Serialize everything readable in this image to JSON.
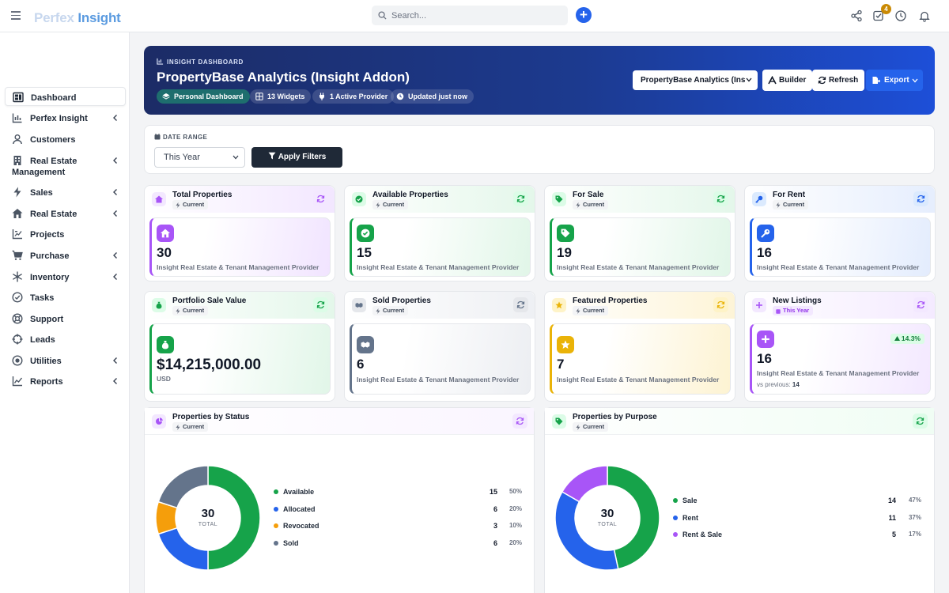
{
  "app": {
    "brand_part1": "Perfex",
    "brand_part2": "Insight",
    "search_placeholder": "Search...",
    "notification_count": "4"
  },
  "sidebar": {
    "items": [
      {
        "label": "Dashboard",
        "icon": "dashboard-icon",
        "active": true
      },
      {
        "label": "Perfex Insight",
        "icon": "chart-icon",
        "chevron": true
      },
      {
        "label": "Customers",
        "icon": "user-icon"
      },
      {
        "label": "Real Estate",
        "label2": "Management",
        "icon": "building-icon",
        "chevron": true
      },
      {
        "label": "Sales",
        "icon": "bolt-icon",
        "chevron": true
      },
      {
        "label": "Real Estate",
        "icon": "house-icon",
        "chevron": true
      },
      {
        "label": "Projects",
        "icon": "projects-icon"
      },
      {
        "label": "Purchase",
        "icon": "cart-icon",
        "chevron": true
      },
      {
        "label": "Inventory",
        "icon": "snowflake-icon",
        "chevron": true
      },
      {
        "label": "Tasks",
        "icon": "check-circle-icon"
      },
      {
        "label": "Support",
        "icon": "lifebuoy-icon"
      },
      {
        "label": "Leads",
        "icon": "crosshair-icon"
      },
      {
        "label": "Utilities",
        "icon": "dot-circle-icon",
        "chevron": true
      },
      {
        "label": "Reports",
        "icon": "line-chart-icon",
        "chevron": true
      }
    ]
  },
  "hero": {
    "kicker": "INSIGHT DASHBOARD",
    "title": "PropertyBase Analytics (Insight Addon)",
    "pills": [
      "Personal Dashboard",
      "13 Widgets",
      "1 Active Provider",
      "Updated just now"
    ],
    "selector_value": "PropertyBase Analytics (Ins",
    "builder_label": "Builder",
    "refresh_label": "Refresh",
    "export_label": "Export"
  },
  "filters": {
    "date_range_label": "DATE RANGE",
    "date_range_value": "This Year",
    "apply_label": "Apply Filters"
  },
  "cards": [
    {
      "title": "Total Properties",
      "badge": "Current",
      "value": "30",
      "sub": "Insight Real Estate & Tenant Management Provider"
    },
    {
      "title": "Available Properties",
      "badge": "Current",
      "value": "15",
      "sub": "Insight Real Estate & Tenant Management Provider"
    },
    {
      "title": "For Sale",
      "badge": "Current",
      "value": "19",
      "sub": "Insight Real Estate & Tenant Management Provider"
    },
    {
      "title": "For Rent",
      "badge": "Current",
      "value": "16",
      "sub": "Insight Real Estate & Tenant Management Provider"
    },
    {
      "title": "Portfolio Sale Value",
      "badge": "Current",
      "value": "$14,215,000.00",
      "sub": "USD"
    },
    {
      "title": "Sold Properties",
      "badge": "Current",
      "value": "6",
      "sub": "Insight Real Estate & Tenant Management Provider"
    },
    {
      "title": "Featured Properties",
      "badge": "Current",
      "value": "7",
      "sub": "Insight Real Estate & Tenant Management Provider"
    },
    {
      "title": "New Listings",
      "badge": "This Year",
      "value": "16",
      "sub": "Insight Real Estate & Tenant Management Provider",
      "trend": "14.3%",
      "vs_label": "vs previous:",
      "vs_value": "14"
    }
  ],
  "colors": {
    "purple": "#a855f7",
    "green": "#16a34a",
    "blue": "#2563eb",
    "orange": "#f59e0b",
    "slate": "#64748b",
    "yellow": "#eab308"
  },
  "chart_data": [
    {
      "type": "pie",
      "title": "Properties by Status",
      "badge": "Current",
      "center_value": "30",
      "center_label": "TOTAL",
      "categories": [
        "Available",
        "Allocated",
        "Revocated",
        "Sold"
      ],
      "values": [
        15,
        6,
        3,
        6
      ],
      "percents": [
        "50%",
        "20%",
        "10%",
        "20%"
      ],
      "colors": [
        "#16a34a",
        "#2563eb",
        "#f59e0b",
        "#64748b"
      ]
    },
    {
      "type": "pie",
      "title": "Properties by Purpose",
      "badge": "Current",
      "center_value": "30",
      "center_label": "TOTAL",
      "categories": [
        "Sale",
        "Rent",
        "Rent & Sale"
      ],
      "values": [
        14,
        11,
        5
      ],
      "percents": [
        "47%",
        "37%",
        "17%"
      ],
      "colors": [
        "#16a34a",
        "#2563eb",
        "#a855f7"
      ]
    }
  ]
}
